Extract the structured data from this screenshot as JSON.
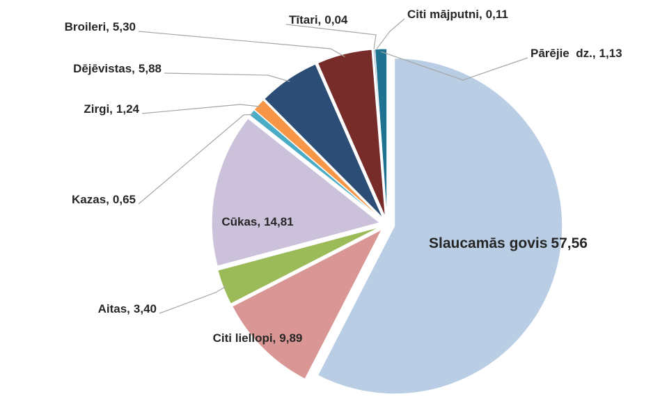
{
  "chart_data": {
    "type": "pie",
    "categories": [
      "Slaucamās govis",
      "Citi liellopi,",
      "Aitas,",
      "Cūkas,",
      "Kazas,",
      "Zirgi,",
      "Dējēvistas,",
      "Broileri,",
      "Tītari,",
      "Citi mājputni,",
      "Pārējie  dz.,"
    ],
    "values": [
      57.56,
      9.89,
      3.4,
      14.81,
      0.65,
      1.24,
      5.88,
      5.3,
      0.04,
      0.11,
      1.13
    ],
    "value_labels": [
      "57,56",
      "9,89",
      "3,40",
      "14,81",
      "0,65",
      "1,24",
      "5,88",
      "5,30",
      "0,04",
      "0,11",
      "1,13"
    ],
    "colors": [
      "#b9cde5",
      "#d99694",
      "#9bbb59",
      "#ccc1da",
      "#4bacc6",
      "#f79646",
      "#2c4d75",
      "#772c2a",
      "#4f6228",
      "#4f81bd",
      "#1f7391"
    ]
  }
}
